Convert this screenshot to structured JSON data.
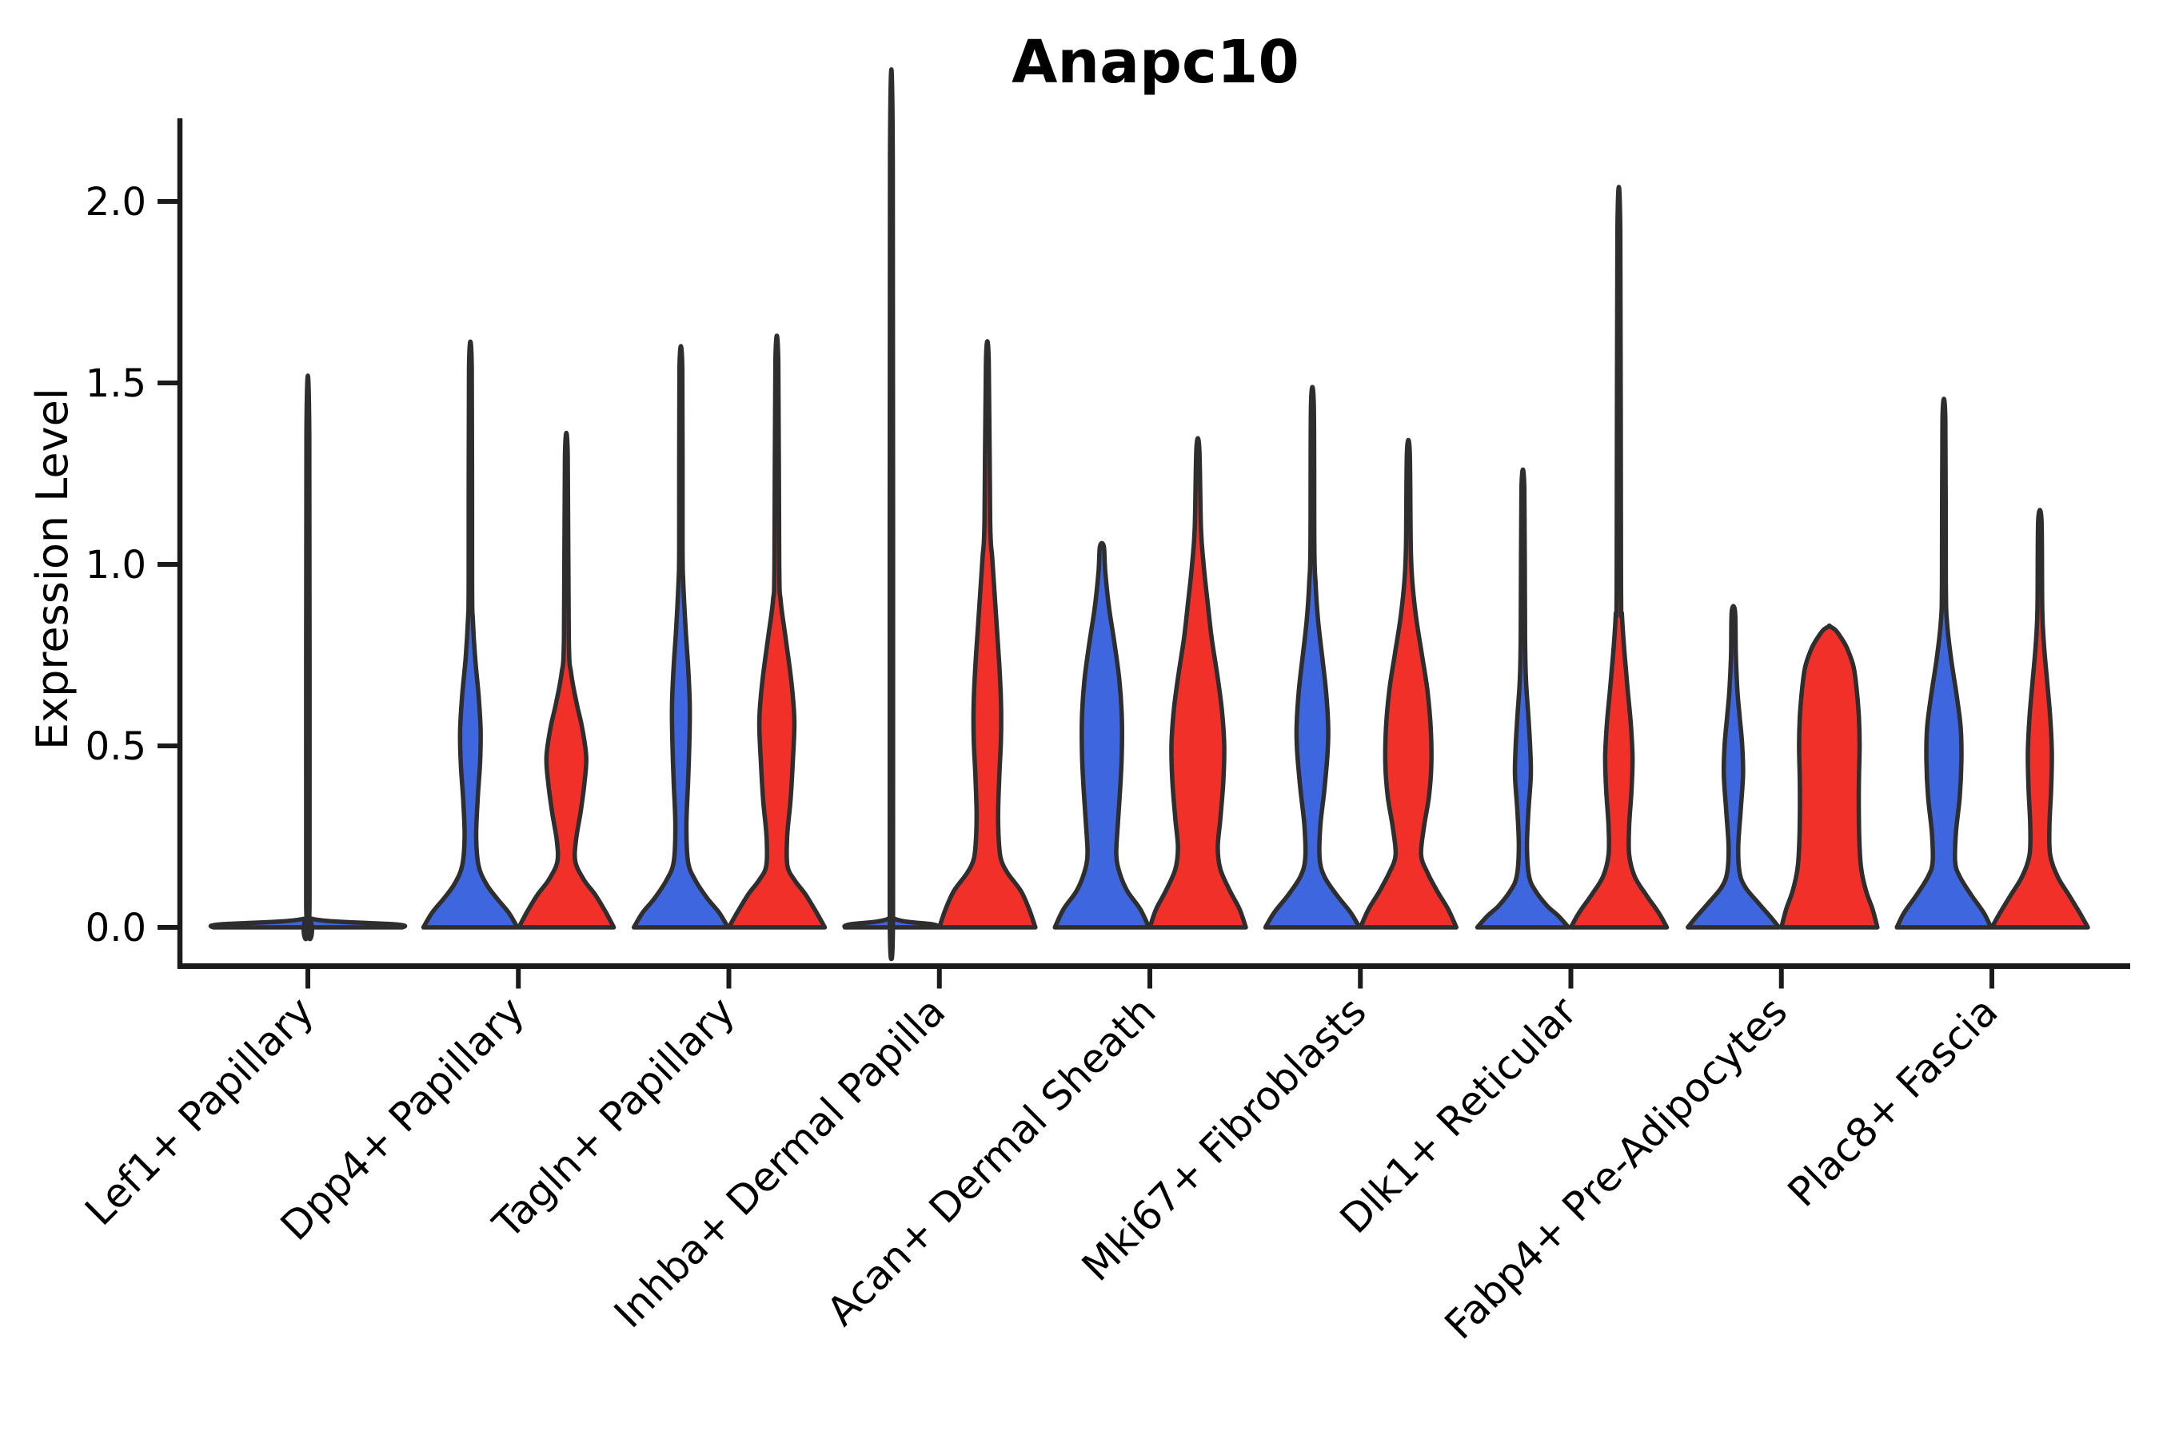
{
  "title": "Anapc10",
  "y_axis": {
    "label": "Expression Level",
    "tick_labels": [
      "0.0",
      "0.5",
      "1.0",
      "1.5",
      "2.0"
    ]
  },
  "x_axis": {
    "tick_labels": [
      "Lef1+ Papillary",
      "Dpp4+ Papillary",
      "Tagln+ Papillary",
      "Inhba+ Dermal Papilla",
      "Acan+ Dermal Sheath",
      "Mki67+ Fibroblasts",
      "Dlk1+ Reticular",
      "Fabp4+ Pre-Adipocytes",
      "Plac8+ Fascia"
    ]
  },
  "chart_data": {
    "type": "violin",
    "title": "Anapc10",
    "xlabel": "",
    "ylabel": "Expression Level",
    "ylim": [
      -0.11,
      2.23
    ],
    "yticks": [
      0.0,
      0.5,
      1.0,
      1.5,
      2.0
    ],
    "ytick_labels": [
      "0.0",
      "0.5",
      "1.0",
      "1.5",
      "2.0"
    ],
    "grid": false,
    "legend": "none",
    "categories": [
      "Lef1+ Papillary",
      "Dpp4+ Papillary",
      "Tagln+ Papillary",
      "Inhba+ Dermal Papilla",
      "Acan+ Dermal Sheath",
      "Mki67+ Fibroblasts",
      "Dlk1+ Reticular",
      "Fabp4+ Pre-Adipocytes",
      "Plac8+ Fascia"
    ],
    "splits": [
      {
        "id": "group1",
        "color": "#3E66DF"
      },
      {
        "id": "group2",
        "color": "#F2302A"
      }
    ],
    "outline_color": "#2E2E2E",
    "profile_format": "pairs of [expression_level, halfwidth] where halfwidth 1.0 = half of one violin slot",
    "violins": [
      {
        "category": "Lef1+ Papillary",
        "split": "group1",
        "position": "full",
        "max": 1.36,
        "profile": [
          [
            0,
            1.97
          ],
          [
            0.008,
            1.85
          ],
          [
            0.025,
            0.05
          ],
          [
            0.08,
            0.035
          ],
          [
            1.36,
            0.03
          ]
        ]
      },
      {
        "category": "Dpp4+ Papillary",
        "split": "group1",
        "position": "left",
        "max": 1.54,
        "profile": [
          [
            0,
            0.98
          ],
          [
            0.04,
            0.8
          ],
          [
            0.08,
            0.55
          ],
          [
            0.12,
            0.33
          ],
          [
            0.17,
            0.17
          ],
          [
            0.25,
            0.12
          ],
          [
            0.35,
            0.15
          ],
          [
            0.45,
            0.2
          ],
          [
            0.54,
            0.215
          ],
          [
            0.64,
            0.17
          ],
          [
            0.74,
            0.1
          ],
          [
            0.85,
            0.05
          ],
          [
            0.95,
            0.035
          ],
          [
            1.54,
            0.03
          ]
        ]
      },
      {
        "category": "Dpp4+ Papillary",
        "split": "group2",
        "position": "right",
        "max": 1.3,
        "profile": [
          [
            0,
            0.99
          ],
          [
            0.04,
            0.83
          ],
          [
            0.09,
            0.6
          ],
          [
            0.13,
            0.37
          ],
          [
            0.18,
            0.19
          ],
          [
            0.24,
            0.2
          ],
          [
            0.32,
            0.3
          ],
          [
            0.4,
            0.38
          ],
          [
            0.47,
            0.415
          ],
          [
            0.55,
            0.33
          ],
          [
            0.62,
            0.21
          ],
          [
            0.7,
            0.1
          ],
          [
            0.8,
            0.05
          ],
          [
            1.3,
            0.03
          ]
        ]
      },
      {
        "category": "Tagln+ Papillary",
        "split": "group1",
        "position": "left",
        "max": 1.54,
        "profile": [
          [
            0,
            0.98
          ],
          [
            0.04,
            0.8
          ],
          [
            0.08,
            0.55
          ],
          [
            0.13,
            0.3
          ],
          [
            0.18,
            0.15
          ],
          [
            0.28,
            0.115
          ],
          [
            0.4,
            0.15
          ],
          [
            0.5,
            0.175
          ],
          [
            0.61,
            0.185
          ],
          [
            0.72,
            0.15
          ],
          [
            0.82,
            0.1
          ],
          [
            0.95,
            0.05
          ],
          [
            1.05,
            0.035
          ],
          [
            1.54,
            0.03
          ]
        ]
      },
      {
        "category": "Tagln+ Papillary",
        "split": "group2",
        "position": "right",
        "max": 1.56,
        "profile": [
          [
            0,
            1.0
          ],
          [
            0.04,
            0.83
          ],
          [
            0.09,
            0.6
          ],
          [
            0.13,
            0.37
          ],
          [
            0.17,
            0.22
          ],
          [
            0.25,
            0.215
          ],
          [
            0.35,
            0.285
          ],
          [
            0.45,
            0.33
          ],
          [
            0.57,
            0.365
          ],
          [
            0.68,
            0.3
          ],
          [
            0.8,
            0.18
          ],
          [
            0.9,
            0.08
          ],
          [
            1.0,
            0.05
          ],
          [
            1.56,
            0.03
          ]
        ]
      },
      {
        "category": "Inhba+ Dermal Papilla",
        "split": "group1",
        "position": "left",
        "max": 2.11,
        "profile": [
          [
            0,
            0.97
          ],
          [
            0.008,
            0.88
          ],
          [
            0.025,
            0.05
          ],
          [
            0.08,
            0.035
          ],
          [
            2.11,
            0.03
          ]
        ]
      },
      {
        "category": "Inhba+ Dermal Papilla",
        "split": "group2",
        "position": "right",
        "max": 1.56,
        "profile": [
          [
            0,
            1.0
          ],
          [
            0.05,
            0.87
          ],
          [
            0.1,
            0.7
          ],
          [
            0.15,
            0.42
          ],
          [
            0.19,
            0.28
          ],
          [
            0.25,
            0.235
          ],
          [
            0.32,
            0.225
          ],
          [
            0.42,
            0.25
          ],
          [
            0.52,
            0.285
          ],
          [
            0.62,
            0.285
          ],
          [
            0.72,
            0.25
          ],
          [
            0.82,
            0.2
          ],
          [
            0.92,
            0.15
          ],
          [
            1.02,
            0.1
          ],
          [
            1.12,
            0.06
          ],
          [
            1.56,
            0.03
          ]
        ]
      },
      {
        "category": "Acan+ Dermal Sheath",
        "split": "group1",
        "position": "left",
        "max": 1.05,
        "profile": [
          [
            0,
            0.98
          ],
          [
            0.05,
            0.8
          ],
          [
            0.1,
            0.53
          ],
          [
            0.15,
            0.37
          ],
          [
            0.2,
            0.3
          ],
          [
            0.28,
            0.33
          ],
          [
            0.38,
            0.38
          ],
          [
            0.48,
            0.415
          ],
          [
            0.58,
            0.415
          ],
          [
            0.68,
            0.365
          ],
          [
            0.78,
            0.265
          ],
          [
            0.88,
            0.15
          ],
          [
            0.98,
            0.07
          ],
          [
            1.05,
            0.04
          ]
        ]
      },
      {
        "category": "Acan+ Dermal Sheath",
        "split": "group2",
        "position": "right",
        "max": 1.32,
        "profile": [
          [
            0,
            1.0
          ],
          [
            0.05,
            0.87
          ],
          [
            0.1,
            0.67
          ],
          [
            0.16,
            0.47
          ],
          [
            0.22,
            0.415
          ],
          [
            0.3,
            0.47
          ],
          [
            0.4,
            0.53
          ],
          [
            0.5,
            0.55
          ],
          [
            0.6,
            0.5
          ],
          [
            0.7,
            0.4
          ],
          [
            0.8,
            0.285
          ],
          [
            0.9,
            0.2
          ],
          [
            1.0,
            0.12
          ],
          [
            1.1,
            0.065
          ],
          [
            1.32,
            0.03
          ]
        ]
      },
      {
        "category": "Mki67+ Fibroblasts",
        "split": "group1",
        "position": "left",
        "max": 1.44,
        "profile": [
          [
            0,
            0.98
          ],
          [
            0.04,
            0.8
          ],
          [
            0.09,
            0.5
          ],
          [
            0.14,
            0.25
          ],
          [
            0.19,
            0.15
          ],
          [
            0.28,
            0.165
          ],
          [
            0.38,
            0.25
          ],
          [
            0.48,
            0.315
          ],
          [
            0.55,
            0.33
          ],
          [
            0.65,
            0.285
          ],
          [
            0.75,
            0.2
          ],
          [
            0.85,
            0.115
          ],
          [
            0.95,
            0.065
          ],
          [
            1.05,
            0.04
          ],
          [
            1.44,
            0.03
          ]
        ]
      },
      {
        "category": "Mki67+ Fibroblasts",
        "split": "group2",
        "position": "right",
        "max": 1.31,
        "profile": [
          [
            0,
            1.0
          ],
          [
            0.05,
            0.83
          ],
          [
            0.1,
            0.6
          ],
          [
            0.15,
            0.4
          ],
          [
            0.2,
            0.265
          ],
          [
            0.28,
            0.33
          ],
          [
            0.36,
            0.43
          ],
          [
            0.45,
            0.48
          ],
          [
            0.55,
            0.465
          ],
          [
            0.65,
            0.4
          ],
          [
            0.75,
            0.285
          ],
          [
            0.85,
            0.165
          ],
          [
            0.95,
            0.085
          ],
          [
            1.05,
            0.05
          ],
          [
            1.31,
            0.03
          ]
        ]
      },
      {
        "category": "Dlk1+ Reticular",
        "split": "group1",
        "position": "left",
        "max": 1.21,
        "profile": [
          [
            0,
            0.95
          ],
          [
            0.03,
            0.75
          ],
          [
            0.06,
            0.5
          ],
          [
            0.1,
            0.265
          ],
          [
            0.14,
            0.13
          ],
          [
            0.22,
            0.085
          ],
          [
            0.32,
            0.115
          ],
          [
            0.42,
            0.165
          ],
          [
            0.5,
            0.15
          ],
          [
            0.58,
            0.115
          ],
          [
            0.68,
            0.065
          ],
          [
            0.8,
            0.045
          ],
          [
            1.21,
            0.03
          ]
        ]
      },
      {
        "category": "Dlk1+ Reticular",
        "split": "group2",
        "position": "right",
        "max": 1.92,
        "profile": [
          [
            0,
            1.0
          ],
          [
            0.04,
            0.83
          ],
          [
            0.09,
            0.565
          ],
          [
            0.14,
            0.33
          ],
          [
            0.2,
            0.215
          ],
          [
            0.28,
            0.215
          ],
          [
            0.38,
            0.265
          ],
          [
            0.47,
            0.285
          ],
          [
            0.56,
            0.25
          ],
          [
            0.66,
            0.18
          ],
          [
            0.76,
            0.115
          ],
          [
            0.86,
            0.065
          ],
          [
            0.96,
            0.045
          ],
          [
            1.92,
            0.03
          ]
        ]
      },
      {
        "category": "Fabp4+ Pre-Adipocytes",
        "split": "group1",
        "position": "left",
        "max": 0.87,
        "profile": [
          [
            0,
            0.95
          ],
          [
            0.03,
            0.765
          ],
          [
            0.07,
            0.5
          ],
          [
            0.11,
            0.25
          ],
          [
            0.15,
            0.13
          ],
          [
            0.22,
            0.1
          ],
          [
            0.32,
            0.15
          ],
          [
            0.42,
            0.2
          ],
          [
            0.5,
            0.185
          ],
          [
            0.58,
            0.13
          ],
          [
            0.65,
            0.085
          ],
          [
            0.75,
            0.05
          ],
          [
            0.87,
            0.035
          ]
        ]
      },
      {
        "category": "Fabp4+ Pre-Adipocytes",
        "split": "group2",
        "position": "right",
        "max": 0.83,
        "profile": [
          [
            0,
            1.0
          ],
          [
            0.05,
            0.9
          ],
          [
            0.1,
            0.765
          ],
          [
            0.16,
            0.665
          ],
          [
            0.22,
            0.63
          ],
          [
            0.3,
            0.615
          ],
          [
            0.4,
            0.615
          ],
          [
            0.5,
            0.63
          ],
          [
            0.58,
            0.615
          ],
          [
            0.66,
            0.565
          ],
          [
            0.72,
            0.5
          ],
          [
            0.77,
            0.365
          ],
          [
            0.8,
            0.235
          ],
          [
            0.82,
            0.12
          ],
          [
            0.83,
            0.0
          ]
        ]
      },
      {
        "category": "Plac8+ Fascia",
        "split": "group1",
        "position": "left",
        "max": 1.4,
        "profile": [
          [
            0,
            0.98
          ],
          [
            0.04,
            0.83
          ],
          [
            0.09,
            0.565
          ],
          [
            0.14,
            0.33
          ],
          [
            0.18,
            0.235
          ],
          [
            0.26,
            0.25
          ],
          [
            0.36,
            0.33
          ],
          [
            0.46,
            0.365
          ],
          [
            0.55,
            0.35
          ],
          [
            0.64,
            0.265
          ],
          [
            0.74,
            0.15
          ],
          [
            0.84,
            0.065
          ],
          [
            0.95,
            0.04
          ],
          [
            1.4,
            0.03
          ]
        ]
      },
      {
        "category": "Plac8+ Fascia",
        "split": "group2",
        "position": "right",
        "max": 1.12,
        "profile": [
          [
            0,
            1.0
          ],
          [
            0.04,
            0.83
          ],
          [
            0.09,
            0.6
          ],
          [
            0.14,
            0.37
          ],
          [
            0.2,
            0.215
          ],
          [
            0.28,
            0.2
          ],
          [
            0.38,
            0.235
          ],
          [
            0.48,
            0.25
          ],
          [
            0.58,
            0.215
          ],
          [
            0.68,
            0.15
          ],
          [
            0.78,
            0.085
          ],
          [
            0.88,
            0.05
          ],
          [
            1.12,
            0.035
          ]
        ]
      }
    ]
  }
}
